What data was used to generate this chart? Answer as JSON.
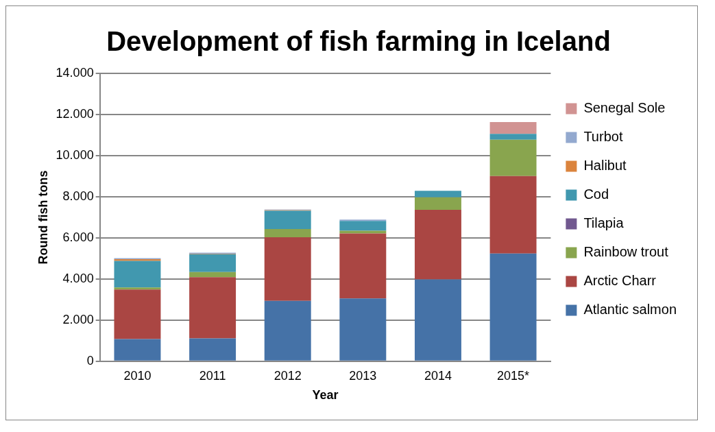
{
  "chart_data": {
    "type": "bar",
    "stacked": true,
    "title": "Development of fish farming in Iceland",
    "xlabel": "Year",
    "ylabel": "Round fish tons",
    "categories": [
      "2010",
      "2011",
      "2012",
      "2013",
      "2014",
      "2015*"
    ],
    "series": [
      {
        "name": "Atlantic salmon",
        "color": "#4572a7",
        "values": [
          1080,
          1110,
          2940,
          3050,
          3980,
          5240
        ]
      },
      {
        "name": "Arctic Charr",
        "color": "#aa4643",
        "values": [
          2410,
          2980,
          3090,
          3160,
          3380,
          3770
        ]
      },
      {
        "name": "Rainbow trout",
        "color": "#89a54e",
        "values": [
          100,
          250,
          400,
          140,
          610,
          1760
        ]
      },
      {
        "name": "Tilapia",
        "color": "#71588f",
        "values": [
          0,
          0,
          0,
          0,
          0,
          0
        ]
      },
      {
        "name": "Cod",
        "color": "#4198af",
        "values": [
          1290,
          860,
          890,
          470,
          320,
          290
        ]
      },
      {
        "name": "Halibut",
        "color": "#db843d",
        "values": [
          80,
          30,
          30,
          0,
          0,
          0
        ]
      },
      {
        "name": "Turbot",
        "color": "#93a9cf",
        "values": [
          50,
          50,
          30,
          70,
          0,
          0
        ]
      },
      {
        "name": "Senegal Sole",
        "color": "#d19392",
        "values": [
          0,
          0,
          0,
          0,
          0,
          570
        ]
      }
    ],
    "ylim": [
      0,
      14000
    ],
    "yticks": [
      0,
      {
        "value": 2000,
        "label": "2.000"
      },
      {
        "value": 4000,
        "label": "4.000"
      },
      {
        "value": 6000,
        "label": "6.000"
      },
      {
        "value": 8000,
        "label": "8.000"
      },
      {
        "value": 10000,
        "label": "10.000"
      },
      {
        "value": 12000,
        "label": "12.000"
      },
      {
        "value": 14000,
        "label": "14.000"
      }
    ],
    "grid": "y",
    "legend": "right"
  }
}
